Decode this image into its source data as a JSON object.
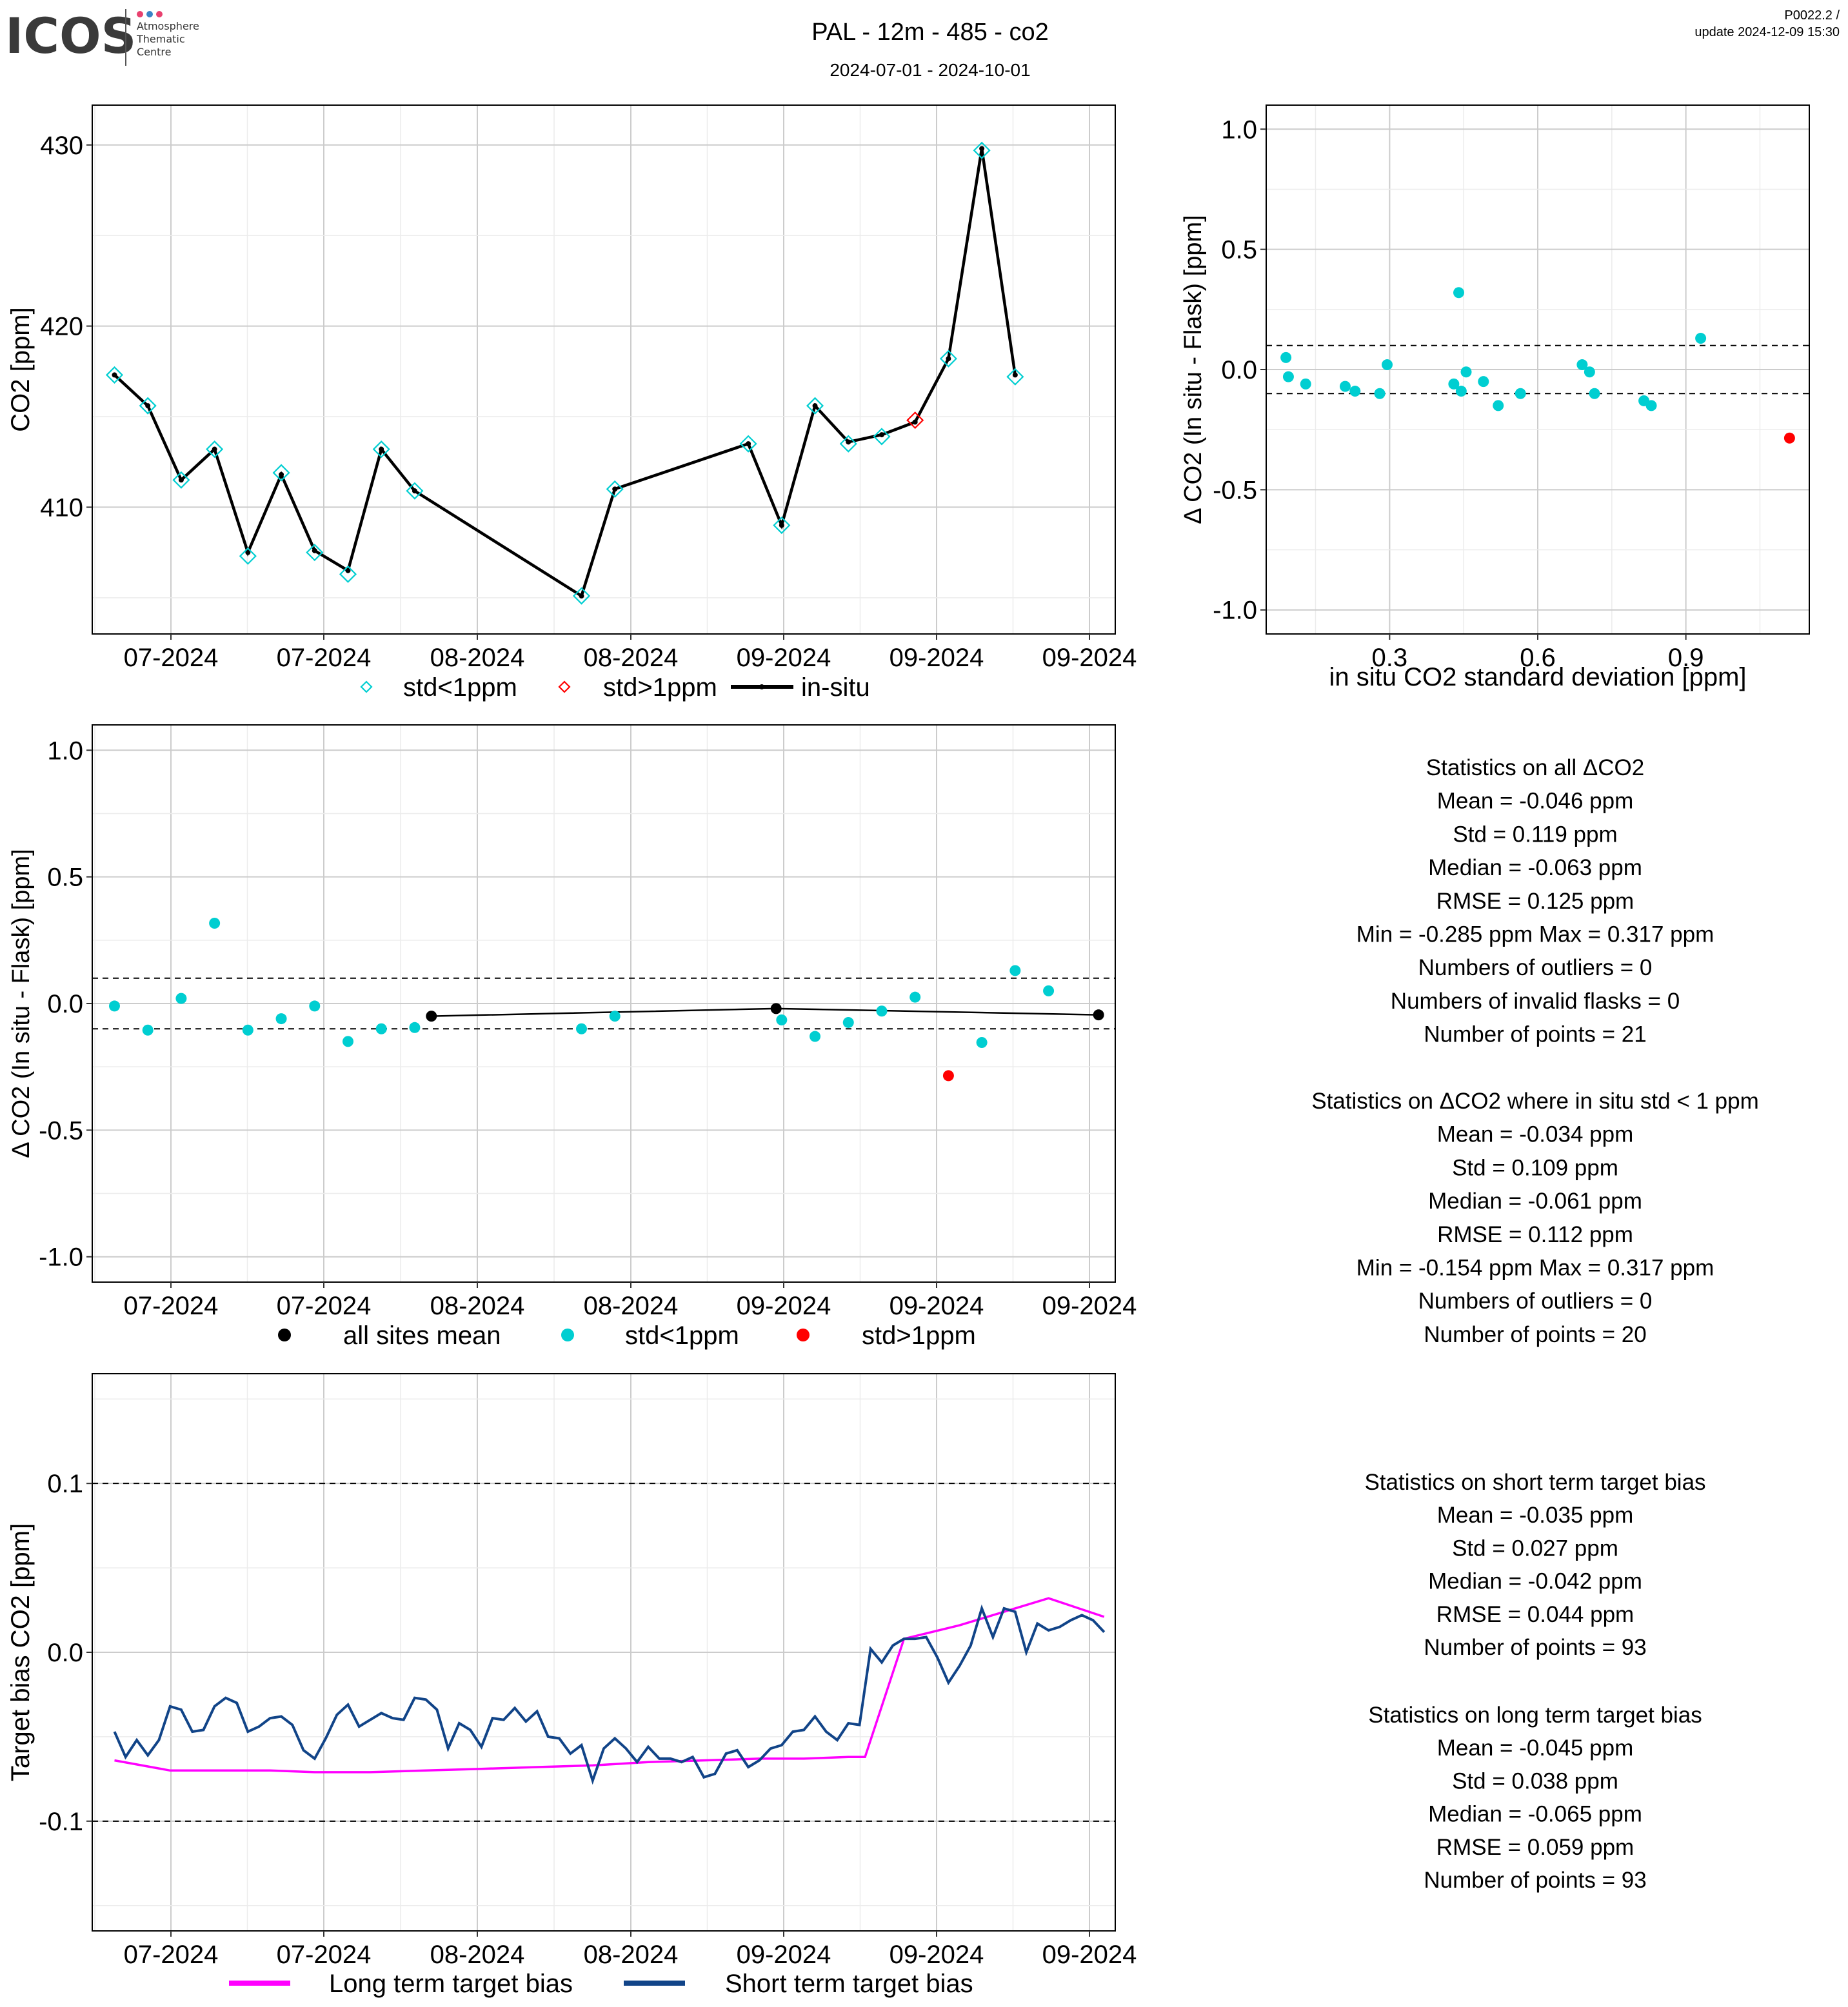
{
  "header": {
    "logo_text": "ICOS",
    "logo_sub": [
      "Atmosphere",
      "Thematic",
      "Centre"
    ],
    "title": "PAL - 12m - 485 - co2",
    "subtitle": "2024-07-01 - 2024-10-01",
    "version": "P0022.2 /",
    "update": "update  2024-12-09 15:30"
  },
  "colors": {
    "cyan": "#00CED1",
    "red": "#FF0000",
    "black": "#000000",
    "magenta": "#FF00FF",
    "navy": "#114488",
    "grid_major": "#cccccc",
    "grid_minor": "#ececec"
  },
  "chart_data": [
    {
      "id": "timeseries",
      "type": "line",
      "ylabel": "CO2 [ppm]",
      "xlabel": "",
      "x_ticks": [
        "07-2024",
        "07-2024",
        "08-2024",
        "08-2024",
        "09-2024",
        "09-2024",
        "09-2024"
      ],
      "y_ticks": [
        410,
        420,
        430
      ],
      "ylim": [
        403.0,
        432.2
      ],
      "x_domain_days": [
        0,
        92
      ],
      "grid": true,
      "legend": [
        "std<1ppm",
        "std>1ppm",
        "in-situ"
      ],
      "series": [
        {
          "name": "in-situ",
          "style": "black-line"
        },
        {
          "name": "std<1ppm",
          "style": "cyan-diamond"
        },
        {
          "name": "std>1ppm",
          "style": "red-diamond"
        }
      ],
      "x": [
        2.0,
        5.0,
        8.0,
        11.0,
        14.0,
        17.0,
        20.0,
        23.0,
        26.0,
        29.0,
        44.0,
        47.0,
        59.0,
        62.0,
        65.0,
        68.0,
        71.0,
        74.0,
        77.0,
        80.0,
        83.0
      ],
      "insitu": [
        417.3,
        415.6,
        411.5,
        413.2,
        407.5,
        411.8,
        407.6,
        406.5,
        413.2,
        410.9,
        405.1,
        411.0,
        413.5,
        409.0,
        415.6,
        413.6,
        414.0,
        414.7,
        418.2,
        429.8,
        417.3
      ],
      "flask": [
        417.3,
        415.6,
        411.5,
        413.2,
        407.3,
        411.9,
        407.5,
        406.3,
        413.2,
        410.9,
        405.1,
        411.0,
        413.5,
        409.0,
        415.6,
        413.5,
        413.9,
        414.8,
        418.2,
        429.7,
        417.2
      ],
      "flask_flag": [
        "ok",
        "ok",
        "ok",
        "ok",
        "ok",
        "ok",
        "ok",
        "ok",
        "ok",
        "ok",
        "ok",
        "ok",
        "ok",
        "ok",
        "ok",
        "ok",
        "ok",
        "bad",
        "ok",
        "ok",
        "ok"
      ]
    },
    {
      "id": "delta_vs_std",
      "type": "scatter",
      "xlabel": "in situ CO2 standard deviation [ppm]",
      "ylabel": "Δ CO2 (In situ - Flask) [ppm]",
      "x_ticks": [
        0.3,
        0.6,
        0.9
      ],
      "y_ticks": [
        -1.0,
        -0.5,
        0.0,
        0.5,
        1.0
      ],
      "xlim": [
        0.05,
        1.15
      ],
      "ylim": [
        -1.1,
        1.1
      ],
      "hlines": [
        0.1,
        -0.1
      ],
      "grid": true,
      "points": [
        {
          "x": 0.09,
          "y": 0.05,
          "flag": "ok"
        },
        {
          "x": 0.095,
          "y": -0.03,
          "flag": "ok"
        },
        {
          "x": 0.13,
          "y": -0.06,
          "flag": "ok"
        },
        {
          "x": 0.21,
          "y": -0.07,
          "flag": "ok"
        },
        {
          "x": 0.23,
          "y": -0.09,
          "flag": "ok"
        },
        {
          "x": 0.28,
          "y": -0.1,
          "flag": "ok"
        },
        {
          "x": 0.295,
          "y": 0.02,
          "flag": "ok"
        },
        {
          "x": 0.43,
          "y": -0.06,
          "flag": "ok"
        },
        {
          "x": 0.44,
          "y": 0.32,
          "flag": "ok"
        },
        {
          "x": 0.445,
          "y": -0.09,
          "flag": "ok"
        },
        {
          "x": 0.455,
          "y": -0.01,
          "flag": "ok"
        },
        {
          "x": 0.49,
          "y": -0.05,
          "flag": "ok"
        },
        {
          "x": 0.52,
          "y": -0.15,
          "flag": "ok"
        },
        {
          "x": 0.565,
          "y": -0.1,
          "flag": "ok"
        },
        {
          "x": 0.69,
          "y": 0.02,
          "flag": "ok"
        },
        {
          "x": 0.705,
          "y": -0.01,
          "flag": "ok"
        },
        {
          "x": 0.715,
          "y": -0.1,
          "flag": "ok"
        },
        {
          "x": 0.815,
          "y": -0.13,
          "flag": "ok"
        },
        {
          "x": 0.83,
          "y": -0.15,
          "flag": "ok"
        },
        {
          "x": 0.93,
          "y": 0.13,
          "flag": "ok"
        },
        {
          "x": 1.11,
          "y": -0.285,
          "flag": "bad"
        }
      ]
    },
    {
      "id": "delta_vs_time",
      "type": "scatter",
      "ylabel": "Δ CO2 (In situ - Flask) [ppm]",
      "xlabel": "",
      "x_ticks": [
        "07-2024",
        "07-2024",
        "08-2024",
        "08-2024",
        "09-2024",
        "09-2024",
        "09-2024"
      ],
      "y_ticks": [
        -1.0,
        -0.5,
        0.0,
        0.5,
        1.0
      ],
      "ylim": [
        -1.1,
        1.1
      ],
      "x_domain_days": [
        0,
        92
      ],
      "hlines": [
        0.1,
        -0.1
      ],
      "grid": true,
      "legend": [
        "all sites mean",
        "std<1ppm",
        "std>1ppm"
      ],
      "points": [
        {
          "x": 2.0,
          "y": -0.01,
          "flag": "ok"
        },
        {
          "x": 5.0,
          "y": -0.105,
          "flag": "ok"
        },
        {
          "x": 8.0,
          "y": 0.02,
          "flag": "ok"
        },
        {
          "x": 11.0,
          "y": 0.317,
          "flag": "ok"
        },
        {
          "x": 14.0,
          "y": -0.105,
          "flag": "ok"
        },
        {
          "x": 17.0,
          "y": -0.06,
          "flag": "ok"
        },
        {
          "x": 20.0,
          "y": -0.01,
          "flag": "ok"
        },
        {
          "x": 23.0,
          "y": -0.15,
          "flag": "ok"
        },
        {
          "x": 26.0,
          "y": -0.1,
          "flag": "ok"
        },
        {
          "x": 29.0,
          "y": -0.095,
          "flag": "ok"
        },
        {
          "x": 44.0,
          "y": -0.1,
          "flag": "ok"
        },
        {
          "x": 47.0,
          "y": -0.05,
          "flag": "ok"
        },
        {
          "x": 62.0,
          "y": -0.065,
          "flag": "ok"
        },
        {
          "x": 65.0,
          "y": -0.13,
          "flag": "ok"
        },
        {
          "x": 68.0,
          "y": -0.075,
          "flag": "ok"
        },
        {
          "x": 71.0,
          "y": -0.03,
          "flag": "ok"
        },
        {
          "x": 74.0,
          "y": 0.025,
          "flag": "ok"
        },
        {
          "x": 77.0,
          "y": -0.285,
          "flag": "bad"
        },
        {
          "x": 80.0,
          "y": -0.154,
          "flag": "ok"
        },
        {
          "x": 83.0,
          "y": 0.13,
          "flag": "ok"
        },
        {
          "x": 86.0,
          "y": 0.05,
          "flag": "ok"
        }
      ],
      "mean_series": {
        "name": "all sites mean",
        "x": [
          30.5,
          61.5,
          90.5
        ],
        "y": [
          -0.05,
          -0.02,
          -0.045
        ]
      }
    },
    {
      "id": "target_bias",
      "type": "line",
      "ylabel": "Target bias CO2 [ppm]",
      "xlabel": "",
      "x_ticks": [
        "07-2024",
        "07-2024",
        "08-2024",
        "08-2024",
        "09-2024",
        "09-2024",
        "09-2024"
      ],
      "y_ticks": [
        -0.1,
        0.0,
        0.1
      ],
      "ylim": [
        -0.165,
        0.165
      ],
      "x_domain_days": [
        0,
        92
      ],
      "hlines": [
        0.1,
        -0.1
      ],
      "grid": true,
      "legend": [
        "Long term target bias",
        "Short term target bias"
      ],
      "series": [
        {
          "name": "Long term target bias",
          "x": [
            2.0,
            7.0,
            12.0,
            16.0,
            20.0,
            25.0,
            30.0,
            35.0,
            40.0,
            45.0,
            50.0,
            55.0,
            60.0,
            64.0,
            68.0,
            69.5,
            73.0,
            78.0,
            83.0,
            86.0,
            91.0
          ],
          "y": [
            -0.064,
            -0.07,
            -0.07,
            -0.07,
            -0.071,
            -0.071,
            -0.07,
            -0.069,
            -0.068,
            -0.067,
            -0.065,
            -0.064,
            -0.063,
            -0.063,
            -0.062,
            -0.062,
            0.008,
            0.016,
            0.026,
            0.032,
            0.021
          ]
        },
        {
          "name": "Short term target bias",
          "x": [
            2.0,
            3.0,
            4.0,
            5.0,
            6.0,
            7.0,
            8.0,
            9.0,
            10.0,
            11.0,
            12.0,
            13.0,
            14.0,
            15.0,
            16.0,
            17.0,
            18.0,
            19.0,
            20.0,
            21.0,
            22.0,
            23.0,
            24.0,
            25.0,
            26.0,
            27.0,
            28.0,
            29.0,
            30.0,
            31.0,
            32.0,
            33.0,
            34.0,
            35.0,
            36.0,
            37.0,
            38.0,
            39.0,
            40.0,
            41.0,
            42.0,
            43.0,
            44.0,
            45.0,
            46.0,
            47.0,
            48.0,
            49.0,
            50.0,
            51.0,
            52.0,
            53.0,
            54.0,
            55.0,
            56.0,
            57.0,
            58.0,
            59.0,
            60.0,
            61.0,
            62.0,
            63.0,
            64.0,
            65.0,
            66.0,
            67.0,
            68.0,
            69.0,
            70.0,
            71.0,
            72.0,
            73.0,
            74.0,
            75.0,
            76.0,
            77.0,
            78.0,
            79.0,
            80.0,
            81.0,
            82.0,
            83.0,
            84.0,
            85.0,
            86.0,
            87.0,
            88.0,
            89.0,
            90.0,
            91.0
          ],
          "y": [
            -0.047,
            -0.062,
            -0.052,
            -0.061,
            -0.052,
            -0.032,
            -0.034,
            -0.047,
            -0.046,
            -0.032,
            -0.027,
            -0.03,
            -0.047,
            -0.044,
            -0.039,
            -0.038,
            -0.043,
            -0.058,
            -0.063,
            -0.051,
            -0.037,
            -0.031,
            -0.044,
            -0.04,
            -0.036,
            -0.039,
            -0.04,
            -0.027,
            -0.028,
            -0.034,
            -0.057,
            -0.042,
            -0.046,
            -0.056,
            -0.039,
            -0.04,
            -0.033,
            -0.041,
            -0.035,
            -0.05,
            -0.051,
            -0.06,
            -0.055,
            -0.076,
            -0.057,
            -0.051,
            -0.057,
            -0.065,
            -0.056,
            -0.063,
            -0.063,
            -0.065,
            -0.062,
            -0.074,
            -0.072,
            -0.06,
            -0.058,
            -0.068,
            -0.064,
            -0.057,
            -0.055,
            -0.047,
            -0.046,
            -0.038,
            -0.047,
            -0.052,
            -0.042,
            -0.043,
            0.002,
            -0.006,
            0.004,
            0.008,
            0.008,
            0.009,
            -0.003,
            -0.018,
            -0.008,
            0.004,
            0.026,
            0.009,
            0.026,
            0.024,
            0.0,
            0.017,
            0.013,
            0.015,
            0.019,
            0.022,
            0.019,
            0.012
          ]
        }
      ]
    }
  ],
  "stats": {
    "all": {
      "title": "Statistics on all ΔCO2",
      "lines": [
        "Mean =  -0.046 ppm",
        "Std =  0.119 ppm",
        "Median =  -0.063 ppm",
        "RMSE =  0.125 ppm",
        "Min =  -0.285 ppm Max =  0.317 ppm",
        "Numbers of outliers =  0",
        "Numbers of invalid flasks =  0",
        "Number of points =  21"
      ]
    },
    "lt1": {
      "title": "Statistics on ΔCO2 where in situ std < 1 ppm",
      "lines": [
        "Mean =  -0.034 ppm",
        "Std =  0.109 ppm",
        "Median =  -0.061 ppm",
        "RMSE =  0.112 ppm",
        "Min =  -0.154 ppm Max =  0.317 ppm",
        "Numbers of outliers =  0",
        "Number of points =  20"
      ]
    },
    "short": {
      "title": "Statistics on short term target bias",
      "lines": [
        "Mean =  -0.035 ppm",
        "Std =  0.027 ppm",
        "Median =  -0.042 ppm",
        "RMSE =  0.044 ppm",
        "Number of points =  93"
      ]
    },
    "long": {
      "title": "Statistics on long term target bias",
      "lines": [
        "Mean =  -0.045 ppm",
        "Std =  0.038 ppm",
        "Median =  -0.065 ppm",
        "RMSE =  0.059 ppm",
        "Number of points =  93"
      ]
    }
  }
}
